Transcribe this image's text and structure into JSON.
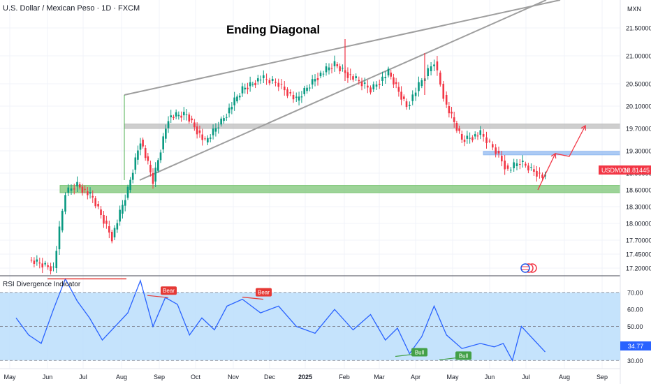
{
  "header": {
    "symbol_title": "U.S. Dollar / Mexican Peso · 1D · FXCM"
  },
  "chart_data": [
    {
      "type": "candlestick",
      "title": "Ending Diagonal",
      "currency_label": "MXN",
      "y_ticks": [
        "21.50000",
        "21.00000",
        "20.50000",
        "20.10000",
        "19.70000",
        "19.30000",
        "18.90000",
        "18.60000",
        "18.30000",
        "18.00000",
        "17.70000",
        "17.45000",
        "17.20000"
      ],
      "ylim": [
        17.1,
        21.9
      ],
      "x_ticks": [
        "May",
        "Jun",
        "Jul",
        "Aug",
        "Sep",
        "Oct",
        "Nov",
        "Dec",
        "2025",
        "Feb",
        "Mar",
        "Apr",
        "May",
        "Jun",
        "Jul",
        "Aug",
        "Sep"
      ],
      "price_tag": {
        "symbol": "USDMXN",
        "value": "18.81445"
      },
      "close_path": [
        [
          "May",
          17.35
        ],
        [
          "Jun",
          17.2
        ],
        [
          "Jun",
          18.55
        ],
        [
          "Jun",
          18.7
        ],
        [
          "Jul",
          18.45
        ],
        [
          "Jul",
          17.75
        ],
        [
          "Aug",
          18.6
        ],
        [
          "Aug",
          19.5
        ],
        [
          "Aug",
          18.75
        ],
        [
          "Sep",
          19.9
        ],
        [
          "Sep",
          19.95
        ],
        [
          "Oct",
          19.45
        ],
        [
          "Oct",
          19.9
        ],
        [
          "Nov",
          20.4
        ],
        [
          "Nov",
          20.6
        ],
        [
          "Dec",
          20.5
        ],
        [
          "Dec",
          20.2
        ],
        [
          "2025",
          20.6
        ],
        [
          "2025",
          20.85
        ],
        [
          "Feb",
          20.6
        ],
        [
          "Feb",
          20.4
        ],
        [
          "Mar",
          20.7
        ],
        [
          "Mar",
          20.1
        ],
        [
          "Apr",
          20.55
        ],
        [
          "Apr",
          20.9
        ],
        [
          "Apr",
          20.1
        ],
        [
          "May",
          19.5
        ],
        [
          "May",
          19.6
        ],
        [
          "Jun",
          19.3
        ],
        [
          "Jun",
          18.95
        ],
        [
          "Jun",
          19.1
        ],
        [
          "Jul",
          18.81
        ]
      ],
      "key_highs": [
        {
          "x": "Feb",
          "y": 21.3
        },
        {
          "x": "Apr",
          "y": 21.05
        }
      ],
      "zones": [
        {
          "type": "resistance",
          "from": 19.7,
          "to": 19.78,
          "color": "#bdbdbd"
        },
        {
          "type": "support",
          "from": 18.55,
          "to": 18.68,
          "color": "#7cc576"
        },
        {
          "type": "target",
          "from": 19.23,
          "to": 19.29,
          "color": "#90b8f0"
        }
      ],
      "projection": [
        [
          "Jul",
          18.6
        ],
        [
          "Aug",
          19.25
        ],
        [
          "Aug",
          19.2
        ],
        [
          "Sep",
          19.75
        ]
      ],
      "grid": true
    },
    {
      "type": "line",
      "title": "RSI Divergence Indicator",
      "y_ticks": [
        "70.00",
        "60.00",
        "50.00",
        "40.00",
        "30.00"
      ],
      "ylim": [
        26,
        79
      ],
      "current_value": "34.77",
      "band": [
        30,
        70
      ],
      "rsi_path": [
        [
          "May",
          55
        ],
        [
          "May",
          45
        ],
        [
          "May",
          40
        ],
        [
          "Jun",
          60
        ],
        [
          "Jun",
          78
        ],
        [
          "Jun",
          65
        ],
        [
          "Jul",
          55
        ],
        [
          "Jul",
          42
        ],
        [
          "Jul",
          50
        ],
        [
          "Aug",
          58
        ],
        [
          "Aug",
          77
        ],
        [
          "Aug",
          50
        ],
        [
          "Sep",
          67
        ],
        [
          "Sep",
          63
        ],
        [
          "Sep",
          45
        ],
        [
          "Oct",
          55
        ],
        [
          "Oct",
          48
        ],
        [
          "Oct",
          62
        ],
        [
          "Nov",
          66
        ],
        [
          "Nov",
          58
        ],
        [
          "Dec",
          62
        ],
        [
          "Dec",
          50
        ],
        [
          "2025",
          46
        ],
        [
          "2025",
          60
        ],
        [
          "Feb",
          48
        ],
        [
          "Feb",
          57
        ],
        [
          "Mar",
          42
        ],
        [
          "Mar",
          49
        ],
        [
          "Mar",
          34
        ],
        [
          "Apr",
          44
        ],
        [
          "Apr",
          62
        ],
        [
          "Apr",
          45
        ],
        [
          "May",
          37
        ],
        [
          "May",
          40
        ],
        [
          "Jun",
          38
        ],
        [
          "Jun",
          40
        ],
        [
          "Jun",
          30
        ],
        [
          "Jun",
          50
        ],
        [
          "Jul",
          35
        ]
      ],
      "signals": [
        {
          "label": "Bear",
          "x": "Sep",
          "y": 67,
          "color": "#e53935"
        },
        {
          "label": "Bear",
          "x": "Nov",
          "y": 66,
          "color": "#e53935"
        },
        {
          "label": "Bull",
          "x": "Mar",
          "y": 34,
          "color": "#43a047"
        },
        {
          "label": "Bull",
          "x": "May",
          "y": 32,
          "color": "#43a047"
        }
      ],
      "colors": {
        "line": "#2962ff",
        "band": "#bbdefb"
      }
    }
  ]
}
